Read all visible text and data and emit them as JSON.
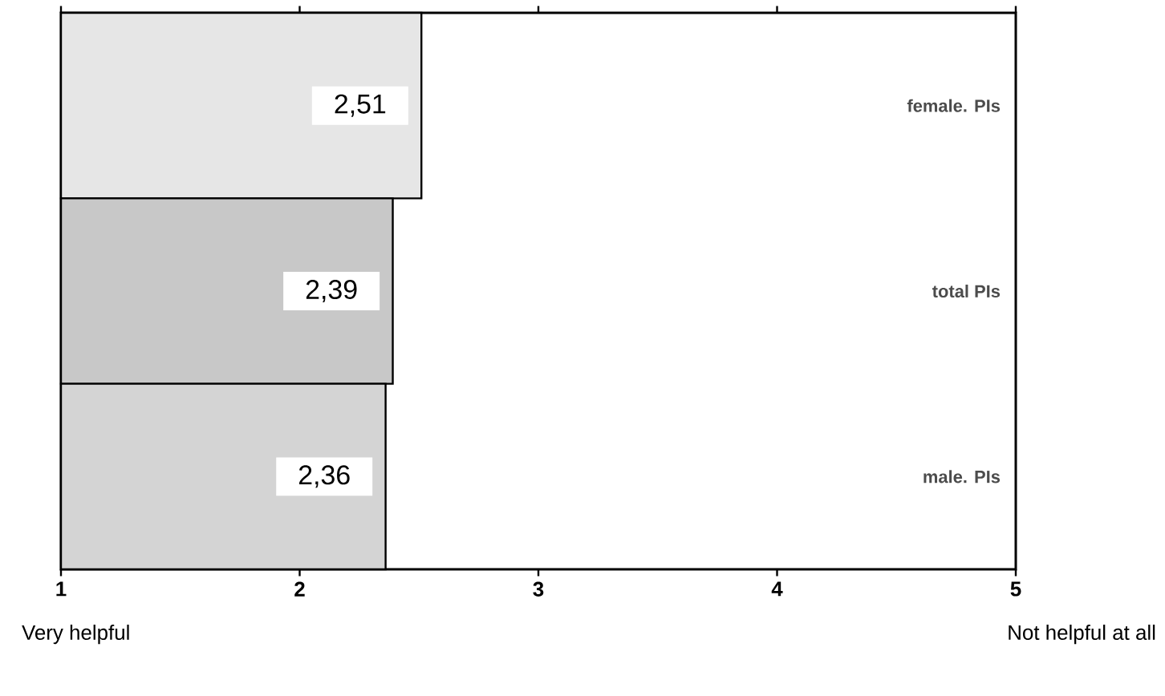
{
  "chart_data": {
    "type": "bar",
    "orientation": "horizontal",
    "categories": [
      "female. PIs",
      "total PIs",
      "male. PIs"
    ],
    "values": [
      2.51,
      2.39,
      2.36
    ],
    "value_labels": [
      "2,51",
      "2,39",
      "2,36"
    ],
    "colors": [
      "#e6e6e6",
      "#c8c8c8",
      "#d4d4d4"
    ],
    "xlim": [
      1,
      5
    ],
    "xticks": [
      1,
      2,
      3,
      4,
      5
    ],
    "annotations": [
      "Very helpful",
      "Not helpful at all"
    ]
  }
}
